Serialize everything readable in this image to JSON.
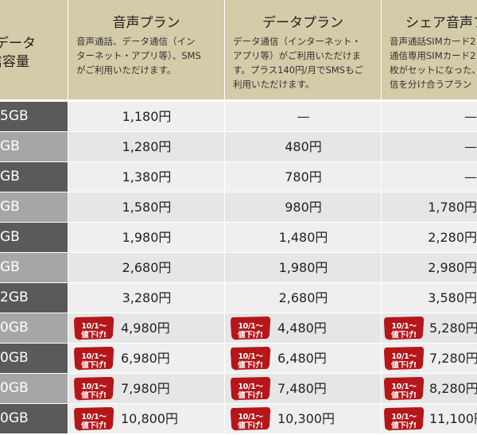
{
  "header": {
    "first_lines": [
      "データ",
      "信容量"
    ],
    "columns": [
      {
        "title": "音声プラン",
        "desc": "音声通話、データ通信（イン\nターネット・アプリ等）、SMS\nがご利用いただけます。"
      },
      {
        "title": "データプラン",
        "desc": "データ通信（インターネット・\nアプリ等）がご利用いただけま\nす。プラス140円/月でSMSもご\n利用いただけます。"
      },
      {
        "title": "シェア音声プ",
        "desc": "音声通話SIMカード2\n通信専用SIMカード2\n枚がセットになった、\n信を分け合うプラン"
      }
    ]
  },
  "badge": {
    "line1": "10/1～",
    "line2": "値下げ!"
  },
  "colors": {
    "header_bg": "#d4cba8",
    "cap_dark": "#5a5a5a",
    "cap_light": "#a6a6a6",
    "badge_red": "#b5161a"
  },
  "rows": [
    {
      "capacity": "5GB",
      "cap_style": "dark",
      "voice": "1,180円",
      "data": "—",
      "share": "—",
      "badge": false
    },
    {
      "capacity": "GB",
      "cap_style": "light",
      "voice": "1,280円",
      "data": "480円",
      "share": "—",
      "badge": false
    },
    {
      "capacity": "GB",
      "cap_style": "dark",
      "voice": "1,380円",
      "data": "780円",
      "share": "—",
      "badge": false
    },
    {
      "capacity": "GB",
      "cap_style": "light",
      "voice": "1,580円",
      "data": "980円",
      "share": "1,780円",
      "badge": false
    },
    {
      "capacity": "GB",
      "cap_style": "dark",
      "voice": "1,980円",
      "data": "1,480円",
      "share": "2,280円",
      "badge": false
    },
    {
      "capacity": "GB",
      "cap_style": "light",
      "voice": "2,680円",
      "data": "1,980円",
      "share": "2,980円",
      "badge": false
    },
    {
      "capacity": "2GB",
      "cap_style": "dark",
      "voice": "3,280円",
      "data": "2,680円",
      "share": "3,580円",
      "badge": false
    },
    {
      "capacity": "0GB",
      "cap_style": "light",
      "voice": "4,980円",
      "data": "4,480円",
      "share": "5,280円",
      "badge": true
    },
    {
      "capacity": "0GB",
      "cap_style": "dark",
      "voice": "6,980円",
      "data": "6,480円",
      "share": "7,280円",
      "badge": true
    },
    {
      "capacity": "0GB",
      "cap_style": "light",
      "voice": "7,980円",
      "data": "7,480円",
      "share": "8,280円",
      "badge": true
    },
    {
      "capacity": "0GB",
      "cap_style": "dark",
      "voice": "10,800円",
      "data": "10,300円",
      "share": "11,100円",
      "badge": true
    }
  ]
}
